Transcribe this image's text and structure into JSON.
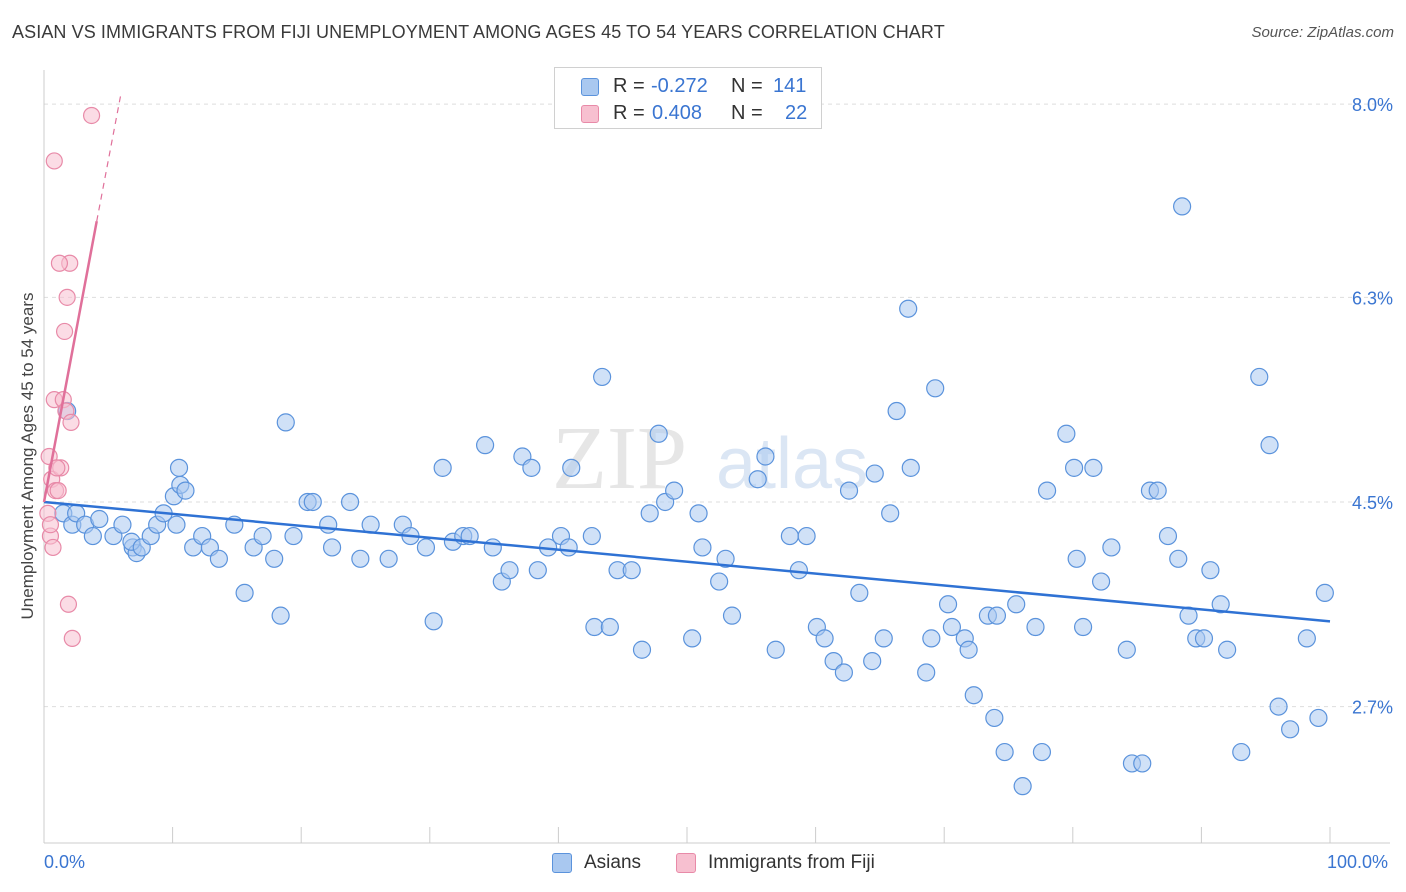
{
  "title": "ASIAN VS IMMIGRANTS FROM FIJI UNEMPLOYMENT AMONG AGES 45 TO 54 YEARS CORRELATION CHART",
  "source": "Source: ZipAtlas.com",
  "watermark": {
    "zip": "ZIP",
    "atlas": "atlas"
  },
  "stats": {
    "asians": {
      "r_label": "R =",
      "r_value": "-0.272",
      "n_label": "N =",
      "n_value": "141"
    },
    "fiji": {
      "r_label": "R =",
      "r_value": "0.408",
      "n_label": "N =",
      "n_value": "22"
    }
  },
  "legend": {
    "asians": "Asians",
    "fiji": "Immigrants from Fiji"
  },
  "colors": {
    "asian_fill": "#a9c8f0",
    "asian_stroke": "#5b93dc",
    "asian_line": "#2f72d4",
    "fiji_fill": "#f7c0d0",
    "fiji_stroke": "#e88aa8",
    "fiji_line": "#e0709a",
    "grid": "#dddddd",
    "tick_label": "#3a75d1"
  },
  "chart_data": {
    "type": "scatter",
    "title": "ASIAN VS IMMIGRANTS FROM FIJI UNEMPLOYMENT AMONG AGES 45 TO 54 YEARS CORRELATION CHART",
    "xlabel": "",
    "ylabel": "Unemployment Among Ages 45 to 54 years",
    "xlim": [
      0,
      100
    ],
    "ylim": [
      1.5,
      8.3
    ],
    "x_tick_labels": [
      {
        "value": 0,
        "label": "0.0%"
      },
      {
        "value": 100,
        "label": "100.0%"
      }
    ],
    "y_ticks": [
      {
        "value": 8.0,
        "label": "8.0%"
      },
      {
        "value": 6.3,
        "label": "6.3%"
      },
      {
        "value": 4.5,
        "label": "4.5%"
      },
      {
        "value": 2.7,
        "label": "2.7%"
      }
    ],
    "legend_position": "bottom-center",
    "grid": true,
    "series": [
      {
        "name": "Asians",
        "trend": {
          "x0": 0,
          "y0": 4.5,
          "x1": 100,
          "y1": 3.45
        },
        "points": [
          [
            1.5,
            4.4
          ],
          [
            1.8,
            5.3
          ],
          [
            2.2,
            4.3
          ],
          [
            2.5,
            4.4
          ],
          [
            3.2,
            4.3
          ],
          [
            3.8,
            4.2
          ],
          [
            4.3,
            4.35
          ],
          [
            5.4,
            4.2
          ],
          [
            6.1,
            4.3
          ],
          [
            6.9,
            4.1
          ],
          [
            7.2,
            4.05
          ],
          [
            6.8,
            4.15
          ],
          [
            7.6,
            4.1
          ],
          [
            8.3,
            4.2
          ],
          [
            8.8,
            4.3
          ],
          [
            9.3,
            4.4
          ],
          [
            10.1,
            4.55
          ],
          [
            10.6,
            4.65
          ],
          [
            10.3,
            4.3
          ],
          [
            11.0,
            4.6
          ],
          [
            11.6,
            4.1
          ],
          [
            12.3,
            4.2
          ],
          [
            12.9,
            4.1
          ],
          [
            13.6,
            4.0
          ],
          [
            10.5,
            4.8
          ],
          [
            14.8,
            4.3
          ],
          [
            15.6,
            3.7
          ],
          [
            16.3,
            4.1
          ],
          [
            17.0,
            4.2
          ],
          [
            17.9,
            4.0
          ],
          [
            18.4,
            3.5
          ],
          [
            18.8,
            5.2
          ],
          [
            19.4,
            4.2
          ],
          [
            20.5,
            4.5
          ],
          [
            20.9,
            4.5
          ],
          [
            22.1,
            4.3
          ],
          [
            22.4,
            4.1
          ],
          [
            23.8,
            4.5
          ],
          [
            24.6,
            4.0
          ],
          [
            25.4,
            4.3
          ],
          [
            26.8,
            4.0
          ],
          [
            27.9,
            4.3
          ],
          [
            28.5,
            4.2
          ],
          [
            29.7,
            4.1
          ],
          [
            30.3,
            3.45
          ],
          [
            31.0,
            4.8
          ],
          [
            31.8,
            4.15
          ],
          [
            32.6,
            4.2
          ],
          [
            33.1,
            4.2
          ],
          [
            34.3,
            5.0
          ],
          [
            34.9,
            4.1
          ],
          [
            35.6,
            3.8
          ],
          [
            36.2,
            3.9
          ],
          [
            37.2,
            4.9
          ],
          [
            37.9,
            4.8
          ],
          [
            38.4,
            3.9
          ],
          [
            39.2,
            4.1
          ],
          [
            40.2,
            4.2
          ],
          [
            40.8,
            4.1
          ],
          [
            41.0,
            4.8
          ],
          [
            42.6,
            4.2
          ],
          [
            42.8,
            3.4
          ],
          [
            43.4,
            5.6
          ],
          [
            44.0,
            3.4
          ],
          [
            44.6,
            3.9
          ],
          [
            45.7,
            3.9
          ],
          [
            46.5,
            3.2
          ],
          [
            47.1,
            4.4
          ],
          [
            47.8,
            5.1
          ],
          [
            48.3,
            4.5
          ],
          [
            49.0,
            4.6
          ],
          [
            50.9,
            4.4
          ],
          [
            50.4,
            3.3
          ],
          [
            51.2,
            4.1
          ],
          [
            52.5,
            3.8
          ],
          [
            53.0,
            4.0
          ],
          [
            53.5,
            3.5
          ],
          [
            55.5,
            4.7
          ],
          [
            56.1,
            4.9
          ],
          [
            56.9,
            3.2
          ],
          [
            58.0,
            4.2
          ],
          [
            58.7,
            3.9
          ],
          [
            59.3,
            4.2
          ],
          [
            60.1,
            3.4
          ],
          [
            60.7,
            3.3
          ],
          [
            61.4,
            3.1
          ],
          [
            62.2,
            3.0
          ],
          [
            62.6,
            4.6
          ],
          [
            63.4,
            3.7
          ],
          [
            64.4,
            3.1
          ],
          [
            64.6,
            4.75
          ],
          [
            65.3,
            3.3
          ],
          [
            65.8,
            4.4
          ],
          [
            66.3,
            5.3
          ],
          [
            67.2,
            6.2
          ],
          [
            67.4,
            4.8
          ],
          [
            68.6,
            3.0
          ],
          [
            69.0,
            3.3
          ],
          [
            69.3,
            5.5
          ],
          [
            70.3,
            3.6
          ],
          [
            70.6,
            3.4
          ],
          [
            71.6,
            3.3
          ],
          [
            71.9,
            3.2
          ],
          [
            72.3,
            2.8
          ],
          [
            73.4,
            3.5
          ],
          [
            73.9,
            2.6
          ],
          [
            74.1,
            3.5
          ],
          [
            74.7,
            2.3
          ],
          [
            75.6,
            3.6
          ],
          [
            76.1,
            2.0
          ],
          [
            77.1,
            3.4
          ],
          [
            77.6,
            2.3
          ],
          [
            78.0,
            4.6
          ],
          [
            79.5,
            5.1
          ],
          [
            80.1,
            4.8
          ],
          [
            80.3,
            4.0
          ],
          [
            80.8,
            3.4
          ],
          [
            81.6,
            4.8
          ],
          [
            82.2,
            3.8
          ],
          [
            83.0,
            4.1
          ],
          [
            84.2,
            3.2
          ],
          [
            84.6,
            2.2
          ],
          [
            85.4,
            2.2
          ],
          [
            86.0,
            4.6
          ],
          [
            86.6,
            4.6
          ],
          [
            87.4,
            4.2
          ],
          [
            88.2,
            4.0
          ],
          [
            89.0,
            3.5
          ],
          [
            89.6,
            3.3
          ],
          [
            90.2,
            3.3
          ],
          [
            90.7,
            3.9
          ],
          [
            91.5,
            3.6
          ],
          [
            92.0,
            3.2
          ],
          [
            93.1,
            2.3
          ],
          [
            94.5,
            5.6
          ],
          [
            95.3,
            5.0
          ],
          [
            96.0,
            2.7
          ],
          [
            96.9,
            2.5
          ],
          [
            98.2,
            3.3
          ],
          [
            99.1,
            2.6
          ],
          [
            99.6,
            3.7
          ],
          [
            88.5,
            7.1
          ]
        ]
      },
      {
        "name": "Immigrants from Fiji",
        "trend": {
          "x0": 0,
          "y0": 4.5,
          "x1": 4.1,
          "y1": 6.97,
          "dash_x1": 6.0,
          "dash_y1": 8.1
        },
        "points": [
          [
            0.3,
            4.4
          ],
          [
            0.4,
            4.9
          ],
          [
            0.5,
            4.2
          ],
          [
            0.6,
            4.7
          ],
          [
            0.7,
            4.1
          ],
          [
            0.8,
            5.4
          ],
          [
            0.9,
            4.6
          ],
          [
            1.1,
            4.6
          ],
          [
            1.3,
            4.8
          ],
          [
            1.5,
            5.4
          ],
          [
            1.8,
            6.3
          ],
          [
            2.0,
            6.6
          ],
          [
            0.8,
            7.5
          ],
          [
            1.2,
            6.6
          ],
          [
            1.6,
            6.0
          ],
          [
            2.2,
            3.3
          ],
          [
            1.9,
            3.6
          ],
          [
            1.7,
            5.3
          ],
          [
            2.1,
            5.2
          ],
          [
            1.0,
            4.8
          ],
          [
            3.7,
            7.9
          ],
          [
            0.5,
            4.3
          ]
        ]
      }
    ]
  }
}
